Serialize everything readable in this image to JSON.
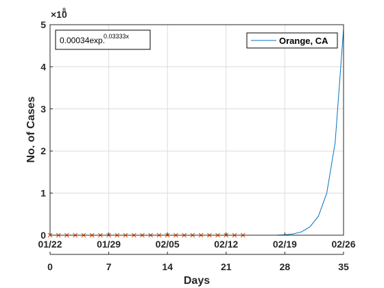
{
  "chart_data": {
    "type": "line",
    "xlabel": "Days",
    "ylabel": "No. of Cases",
    "xlim": [
      0,
      35
    ],
    "ylim": [
      0,
      500000000
    ],
    "y_exponent_label": "×10",
    "y_exponent": "8",
    "grid": true,
    "x_ticks": [
      0,
      7,
      14,
      21,
      28,
      35
    ],
    "x_tick_labels": [
      "0",
      "7",
      "14",
      "21",
      "28",
      "35"
    ],
    "date_tick_labels": [
      "01/22",
      "01/29",
      "02/05",
      "02/12",
      "02/19",
      "02/26"
    ],
    "y_ticks": [
      0,
      1,
      2,
      3,
      4,
      5
    ],
    "y_tick_labels": [
      "0",
      "1",
      "2",
      "3",
      "4",
      "5"
    ],
    "legend_placement": "top-right",
    "series": [
      {
        "name": "Orange, CA",
        "style": "line",
        "color": "#0072BD",
        "x": [
          0,
          1,
          2,
          3,
          4,
          5,
          6,
          7,
          8,
          9,
          10,
          11,
          12,
          13,
          14,
          15,
          16,
          17,
          18,
          19,
          20,
          21,
          22,
          23,
          24,
          25,
          26,
          27,
          28,
          29,
          30,
          31,
          32,
          33,
          34,
          35
        ],
        "y": [
          0,
          0,
          0,
          0,
          0,
          0,
          0,
          0,
          0,
          0,
          0,
          0,
          0,
          0,
          0,
          0,
          0,
          0,
          0,
          0,
          0,
          0,
          0,
          0,
          0,
          0,
          100000,
          300000,
          1000000,
          3000000,
          8000000,
          20000000,
          45000000,
          100000000,
          220000000,
          490000000
        ]
      },
      {
        "name": "",
        "style": "markers",
        "marker": "x",
        "color": "#D95319",
        "x": [
          0,
          1,
          2,
          3,
          4,
          5,
          6,
          7,
          8,
          9,
          10,
          11,
          12,
          13,
          14,
          15,
          16,
          17,
          18,
          19,
          20,
          21,
          22,
          23
        ],
        "y": [
          0,
          0,
          0,
          0,
          0,
          0,
          0,
          0,
          0,
          0,
          0,
          0,
          0,
          0,
          0,
          0,
          0,
          0,
          0,
          0,
          0,
          0,
          0,
          0
        ]
      }
    ],
    "annotation": {
      "main": "0.00034exp.",
      "superscript": "0.03333x"
    }
  }
}
